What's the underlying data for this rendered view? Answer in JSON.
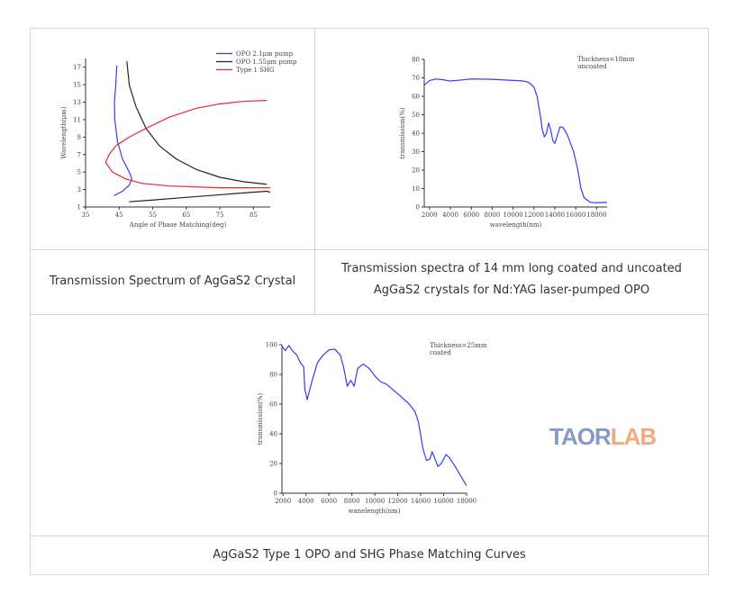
{
  "captions": [
    "Transmission Spectrum of AgGaS2 Crystal",
    "Transmission spectra of 14 mm long coated and uncoated AgGaS2 crystals for Nd:YAG laser-pumped OPO",
    "AgGaS2 Type 1 OPO and SHG Phase Matching Curves"
  ],
  "watermark": "TAORLAB",
  "chart_data": [
    {
      "type": "line",
      "xlabel": "Angle of Phase Matching(deg)",
      "ylabel": "Wavelength(μm)",
      "xlim": [
        35,
        90
      ],
      "ylim": [
        1,
        18
      ],
      "xticks": [
        35,
        45,
        55,
        65,
        75,
        85
      ],
      "yticks": [
        1,
        3,
        5,
        7,
        9,
        11,
        13,
        15,
        17
      ],
      "legend": "top-right",
      "annotations": [],
      "series": [
        {
          "name": "OPO 2.1μm pump",
          "color": "#3b3bf0",
          "points": [
            [
              43.5,
              2.3
            ],
            [
              46,
              2.8
            ],
            [
              48,
              3.5
            ],
            [
              48.8,
              4.2
            ],
            [
              48,
              5
            ],
            [
              46,
              6.5
            ],
            [
              44.5,
              8.5
            ],
            [
              43.7,
              11
            ],
            [
              43.6,
              13
            ],
            [
              44,
              15
            ],
            [
              44.3,
              17.2
            ]
          ]
        },
        {
          "name": "OPO 1.55μm pump",
          "color": "#222222",
          "points": [
            [
              47.3,
              17.7
            ],
            [
              48,
              15
            ],
            [
              50,
              12.5
            ],
            [
              53,
              10
            ],
            [
              57,
              8
            ],
            [
              62,
              6.5
            ],
            [
              68,
              5.3
            ],
            [
              75,
              4.4
            ],
            [
              82,
              3.9
            ],
            [
              89,
              3.6
            ]
          ],
          "points2": [
            [
              48,
              1.6
            ],
            [
              55,
              1.8
            ],
            [
              65,
              2.1
            ],
            [
              75,
              2.4
            ],
            [
              85,
              2.7
            ],
            [
              89,
              2.8
            ],
            [
              90,
              2.7
            ]
          ]
        },
        {
          "name": "Type 1 SHG",
          "color": "#e8282a",
          "points": [
            [
              90,
              3.2
            ],
            [
              75,
              3.2
            ],
            [
              60,
              3.4
            ],
            [
              52,
              3.7
            ],
            [
              47,
              4.2
            ],
            [
              43,
              5
            ],
            [
              41,
              6.1
            ],
            [
              42,
              7
            ],
            [
              44,
              8
            ],
            [
              48,
              9
            ],
            [
              53,
              10
            ],
            [
              60,
              11.3
            ],
            [
              68,
              12.3
            ],
            [
              75,
              12.8
            ],
            [
              82,
              13.1
            ],
            [
              89,
              13.2
            ]
          ]
        }
      ]
    },
    {
      "type": "line",
      "xlabel": "wavelength(nm)",
      "ylabel": "transmission(%)",
      "xlim": [
        1500,
        19000
      ],
      "ylim": [
        0,
        80
      ],
      "xticks": [
        2000,
        4000,
        6000,
        8000,
        10000,
        12000,
        14000,
        16000,
        18000
      ],
      "yticks": [
        0,
        10,
        20,
        30,
        40,
        50,
        60,
        70,
        80
      ],
      "annotations": [
        "Thickness=18mm",
        "uncoated"
      ],
      "series": [
        {
          "color": "#3b3bf0",
          "points": [
            [
              1500,
              66
            ],
            [
              2000,
              68.5
            ],
            [
              2500,
              69.3
            ],
            [
              3000,
              69.2
            ],
            [
              4000,
              68.3
            ],
            [
              5000,
              68.8
            ],
            [
              6000,
              69.4
            ],
            [
              8000,
              69.2
            ],
            [
              10000,
              68.6
            ],
            [
              11000,
              68.3
            ],
            [
              11500,
              67.5
            ],
            [
              12000,
              65
            ],
            [
              12300,
              60
            ],
            [
              12600,
              50
            ],
            [
              12800,
              42
            ],
            [
              13000,
              38
            ],
            [
              13200,
              40
            ],
            [
              13400,
              45.5
            ],
            [
              13600,
              42
            ],
            [
              13800,
              36
            ],
            [
              14000,
              34.5
            ],
            [
              14200,
              38
            ],
            [
              14500,
              43.5
            ],
            [
              14800,
              43
            ],
            [
              15200,
              39
            ],
            [
              15800,
              30
            ],
            [
              16200,
              20
            ],
            [
              16500,
              10
            ],
            [
              16800,
              5
            ],
            [
              17400,
              2.5
            ],
            [
              18000,
              2.3
            ],
            [
              19000,
              2.5
            ]
          ]
        }
      ]
    },
    {
      "type": "line",
      "xlabel": "wanelength(nm)",
      "ylabel": "transmission(%)",
      "xlim": [
        1900,
        18000
      ],
      "ylim": [
        0,
        100
      ],
      "xticks": [
        2000,
        4000,
        6000,
        8000,
        10000,
        12000,
        14000,
        16000,
        18000
      ],
      "yticks": [
        0,
        20,
        40,
        60,
        80,
        100
      ],
      "annotations": [
        "Thickness=25mm",
        "coated"
      ],
      "series": [
        {
          "color": "#3b3bf0",
          "points": [
            [
              1900,
              99
            ],
            [
              2200,
              96
            ],
            [
              2500,
              99.5
            ],
            [
              2800,
              96
            ],
            [
              3200,
              93
            ],
            [
              3500,
              88
            ],
            [
              3800,
              85
            ],
            [
              3900,
              70
            ],
            [
              4100,
              63
            ],
            [
              4500,
              75
            ],
            [
              5000,
              88
            ],
            [
              5500,
              93
            ],
            [
              6000,
              96.5
            ],
            [
              6500,
              97
            ],
            [
              7000,
              93
            ],
            [
              7300,
              84
            ],
            [
              7600,
              72
            ],
            [
              7900,
              76
            ],
            [
              8200,
              72
            ],
            [
              8500,
              84
            ],
            [
              9000,
              87
            ],
            [
              9500,
              84
            ],
            [
              10000,
              79
            ],
            [
              10500,
              75
            ],
            [
              11000,
              73.5
            ],
            [
              12000,
              67
            ],
            [
              13000,
              60
            ],
            [
              13500,
              55
            ],
            [
              13800,
              48
            ],
            [
              14200,
              30
            ],
            [
              14500,
              22
            ],
            [
              14800,
              23
            ],
            [
              15000,
              28
            ],
            [
              15300,
              22
            ],
            [
              15500,
              18
            ],
            [
              15800,
              20
            ],
            [
              16200,
              26
            ],
            [
              16500,
              24
            ],
            [
              17000,
              18
            ],
            [
              18000,
              5
            ]
          ]
        }
      ]
    }
  ]
}
